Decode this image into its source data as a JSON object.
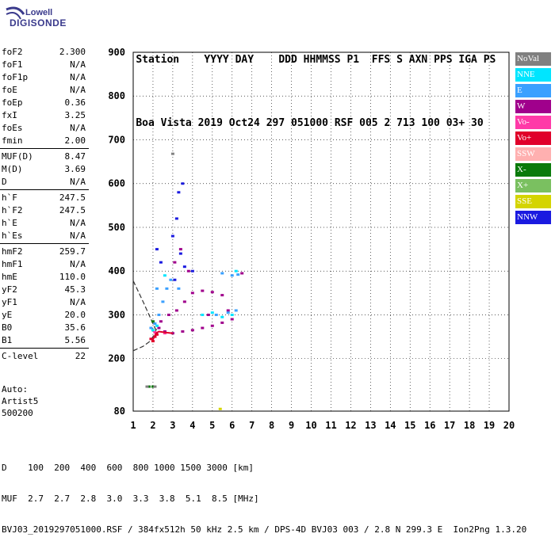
{
  "logo": {
    "line1": "Lowell",
    "line2": "DIGISONDE"
  },
  "header": {
    "row1": [
      "Station",
      "YYYY",
      "DAY",
      "DDD",
      "HHMMSS",
      "P1",
      "FFS",
      "S",
      "AXN",
      "PPS",
      "IGA",
      "PS"
    ],
    "row2": [
      "Boa Vista",
      "2019",
      "Oct24",
      "297",
      "051000",
      "RSF",
      "005",
      "2",
      "713",
      "100",
      "03+",
      "30"
    ]
  },
  "params": [
    [
      {
        "k": "foF2",
        "v": "2.300"
      },
      {
        "k": "foF1",
        "v": "N/A"
      },
      {
        "k": "foF1p",
        "v": "N/A"
      },
      {
        "k": "foE",
        "v": "N/A"
      },
      {
        "k": "foEp",
        "v": "0.36"
      },
      {
        "k": "fxI",
        "v": "3.25"
      },
      {
        "k": "foEs",
        "v": "N/A"
      },
      {
        "k": "fmin",
        "v": "2.00"
      }
    ],
    [
      {
        "k": "MUF(D)",
        "v": "8.47"
      },
      {
        "k": "M(D)",
        "v": "3.69"
      },
      {
        "k": "D",
        "v": "N/A"
      }
    ],
    [
      {
        "k": "h`F",
        "v": "247.5"
      },
      {
        "k": "h`F2",
        "v": "247.5"
      },
      {
        "k": "h`E",
        "v": "N/A"
      },
      {
        "k": "h`Es",
        "v": "N/A"
      }
    ],
    [
      {
        "k": "hmF2",
        "v": "259.7"
      },
      {
        "k": "hmF1",
        "v": "N/A"
      },
      {
        "k": "hmE",
        "v": "110.0"
      },
      {
        "k": "yF2",
        "v": "45.3"
      },
      {
        "k": "yF1",
        "v": "N/A"
      },
      {
        "k": "yE",
        "v": "20.0"
      },
      {
        "k": "B0",
        "v": "35.6"
      },
      {
        "k": "B1",
        "v": "5.56"
      }
    ],
    [
      {
        "k": "C-level",
        "v": "22"
      }
    ]
  ],
  "auto": [
    "Auto:",
    "Artist5",
    "500200"
  ],
  "legend": [
    {
      "label": "NoVal",
      "color": "#808080"
    },
    {
      "label": "NNE",
      "color": "#00e5ff"
    },
    {
      "label": "E",
      "color": "#3aa0ff"
    },
    {
      "label": "W",
      "color": "#a0008c"
    },
    {
      "label": "Vo-",
      "color": "#ff3aa8"
    },
    {
      "label": "Vo+",
      "color": "#e0002a"
    },
    {
      "label": "SSW",
      "color": "#ffb0b0"
    },
    {
      "label": "X-",
      "color": "#0a7a0a"
    },
    {
      "label": "X+",
      "color": "#7ac060"
    },
    {
      "label": "SSE",
      "color": "#d4d400"
    },
    {
      "label": "NNW",
      "color": "#1a1ae0"
    }
  ],
  "footer": {
    "row1": [
      "D",
      "100",
      "200",
      "400",
      "600",
      "800",
      "1000",
      "1500",
      "3000",
      "[km]"
    ],
    "row2": [
      "MUF",
      "2.7",
      "2.7",
      "2.8",
      "3.0",
      "3.3",
      "3.8",
      "5.1",
      "8.5",
      "[MHz]"
    ],
    "row3": "BVJ03_2019297051000.RSF / 384fx512h 50 kHz 2.5 km / DPS-4D BVJ03 003 / 2.8 N 299.3 E  Ion2Png 1.3.20"
  },
  "chart_data": {
    "type": "scatter",
    "xlabel": "",
    "ylabel": "",
    "xlim": [
      1,
      20
    ],
    "ylim": [
      80,
      900
    ],
    "x_ticks": [
      1,
      2,
      3,
      4,
      5,
      6,
      7,
      8,
      9,
      10,
      11,
      12,
      13,
      14,
      15,
      16,
      17,
      18,
      19,
      20
    ],
    "y_ticks": [
      80,
      200,
      300,
      400,
      500,
      600,
      700,
      800,
      900
    ],
    "grid": true,
    "legend_placement": "right",
    "series": [
      {
        "name": "W",
        "points": [
          [
            2.3,
            270
          ],
          [
            2.6,
            262
          ],
          [
            3.0,
            258
          ],
          [
            3.5,
            262
          ],
          [
            4.0,
            265
          ],
          [
            4.5,
            270
          ],
          [
            5.0,
            275
          ],
          [
            5.5,
            282
          ],
          [
            6.0,
            290
          ],
          [
            2.8,
            300
          ],
          [
            3.2,
            310
          ],
          [
            3.6,
            330
          ],
          [
            4.0,
            350
          ],
          [
            4.5,
            355
          ],
          [
            5.0,
            352
          ],
          [
            5.5,
            345
          ],
          [
            3.1,
            420
          ],
          [
            3.4,
            450
          ],
          [
            3.8,
            400
          ],
          [
            2.4,
            285
          ],
          [
            4.8,
            300
          ],
          [
            5.8,
            310
          ],
          [
            6.5,
            395
          ]
        ]
      },
      {
        "name": "E",
        "points": [
          [
            1.9,
            270
          ],
          [
            2.1,
            280
          ],
          [
            2.3,
            300
          ],
          [
            2.5,
            330
          ],
          [
            2.7,
            360
          ],
          [
            2.9,
            380
          ],
          [
            5.5,
            395
          ],
          [
            6.0,
            390
          ],
          [
            6.3,
            392
          ],
          [
            5.2,
            300
          ],
          [
            5.8,
            305
          ],
          [
            6.2,
            310
          ],
          [
            3.3,
            360
          ],
          [
            2.2,
            360
          ]
        ]
      },
      {
        "name": "NNW",
        "points": [
          [
            3.0,
            480
          ],
          [
            3.2,
            520
          ],
          [
            3.4,
            440
          ],
          [
            3.6,
            410
          ],
          [
            3.3,
            580
          ],
          [
            3.5,
            600
          ],
          [
            3.1,
            380
          ],
          [
            2.2,
            450
          ],
          [
            2.4,
            420
          ],
          [
            4.0,
            400
          ]
        ]
      },
      {
        "name": "NNE",
        "points": [
          [
            2.0,
            265
          ],
          [
            2.2,
            275
          ],
          [
            4.5,
            300
          ],
          [
            5.0,
            305
          ],
          [
            5.5,
            295
          ],
          [
            6.0,
            300
          ],
          [
            2.6,
            390
          ],
          [
            6.2,
            400
          ]
        ]
      },
      {
        "name": "Vo+",
        "points": [
          [
            1.9,
            245
          ],
          [
            2.0,
            240
          ],
          [
            2.1,
            250
          ],
          [
            2.2,
            255
          ]
        ]
      },
      {
        "name": "Vo-",
        "points": [
          [
            2.1,
            260
          ],
          [
            2.6,
            258
          ]
        ]
      },
      {
        "name": "X-",
        "points": [
          [
            2.0,
            285
          ],
          [
            1.8,
            136
          ],
          [
            2.0,
            136
          ]
        ]
      },
      {
        "name": "SSE",
        "points": [
          [
            5.4,
            85
          ]
        ]
      },
      {
        "name": "NoVal",
        "points": [
          [
            1.7,
            136
          ],
          [
            2.1,
            136
          ],
          [
            3.0,
            668
          ]
        ]
      }
    ],
    "curves": [
      {
        "name": "profile-upper",
        "points": [
          [
            1.0,
            378
          ],
          [
            1.5,
            330
          ],
          [
            1.8,
            300
          ],
          [
            2.0,
            280
          ],
          [
            2.15,
            265
          ],
          [
            2.25,
            255
          ]
        ]
      },
      {
        "name": "profile-lower",
        "points": [
          [
            1.0,
            218
          ],
          [
            1.5,
            228
          ],
          [
            1.8,
            238
          ],
          [
            2.0,
            250
          ],
          [
            2.15,
            265
          ],
          [
            2.25,
            275
          ]
        ]
      }
    ],
    "fitted_trace": {
      "points": [
        [
          1.95,
          240
        ],
        [
          2.05,
          248
        ],
        [
          2.15,
          258
        ],
        [
          2.3,
          262
        ],
        [
          2.6,
          260
        ],
        [
          3.0,
          258
        ]
      ]
    }
  }
}
